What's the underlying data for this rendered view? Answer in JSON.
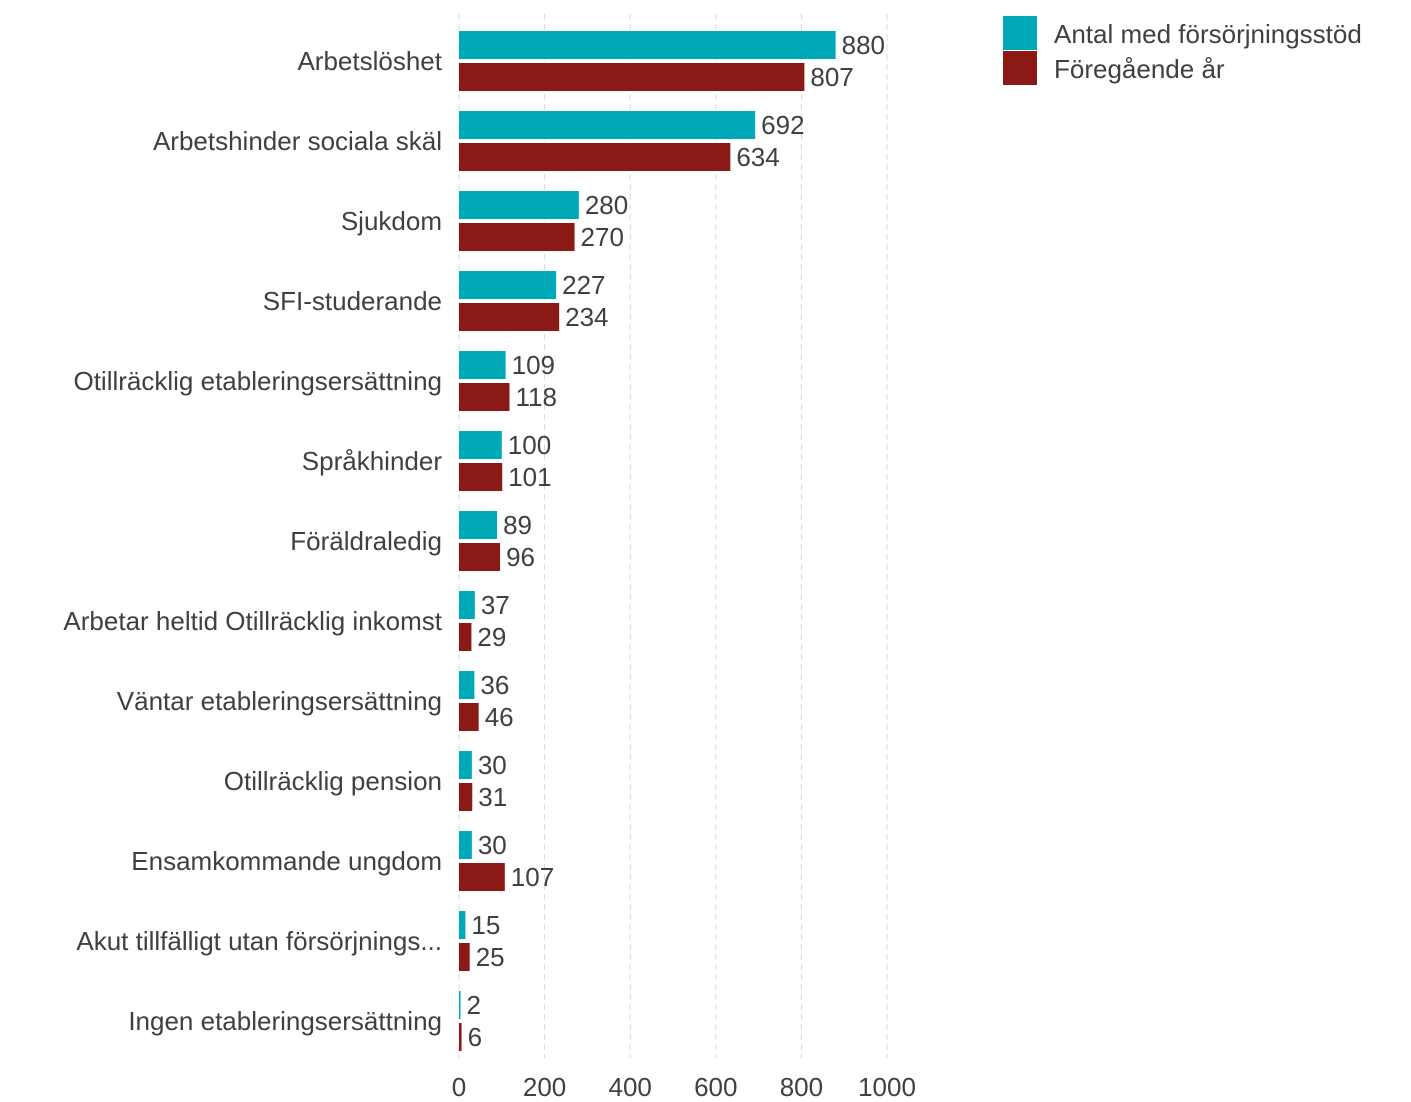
{
  "chart_data": {
    "type": "bar",
    "orientation": "horizontal",
    "categories": [
      "Arbetslöshet",
      "Arbetshinder sociala skäl",
      "Sjukdom",
      "SFI-studerande",
      "Otillräcklig etableringsersättning",
      "Språkhinder",
      "Föräldraledig",
      "Arbetar heltid Otillräcklig inkomst",
      "Väntar etableringsersättning",
      "Otillräcklig pension",
      "Ensamkommande ungdom",
      "Akut tillfälligt utan försörjnings...",
      "Ingen etableringsersättning"
    ],
    "series": [
      {
        "name": "Antal med försörjningsstöd",
        "color": "#00a9b7",
        "values": [
          880,
          692,
          280,
          227,
          109,
          100,
          89,
          37,
          36,
          30,
          30,
          15,
          2
        ]
      },
      {
        "name": "Föregående år",
        "color": "#8b1a17",
        "values": [
          807,
          634,
          270,
          234,
          118,
          101,
          96,
          29,
          46,
          31,
          107,
          25,
          6
        ]
      }
    ],
    "x_ticks": [
      "0",
      "200",
      "400",
      "600",
      "800",
      "1000"
    ],
    "xlim": [
      0,
      1000
    ],
    "grid": "vertical-dashed",
    "legend_position": "top-right",
    "title": "",
    "xlabel": "",
    "ylabel": ""
  }
}
